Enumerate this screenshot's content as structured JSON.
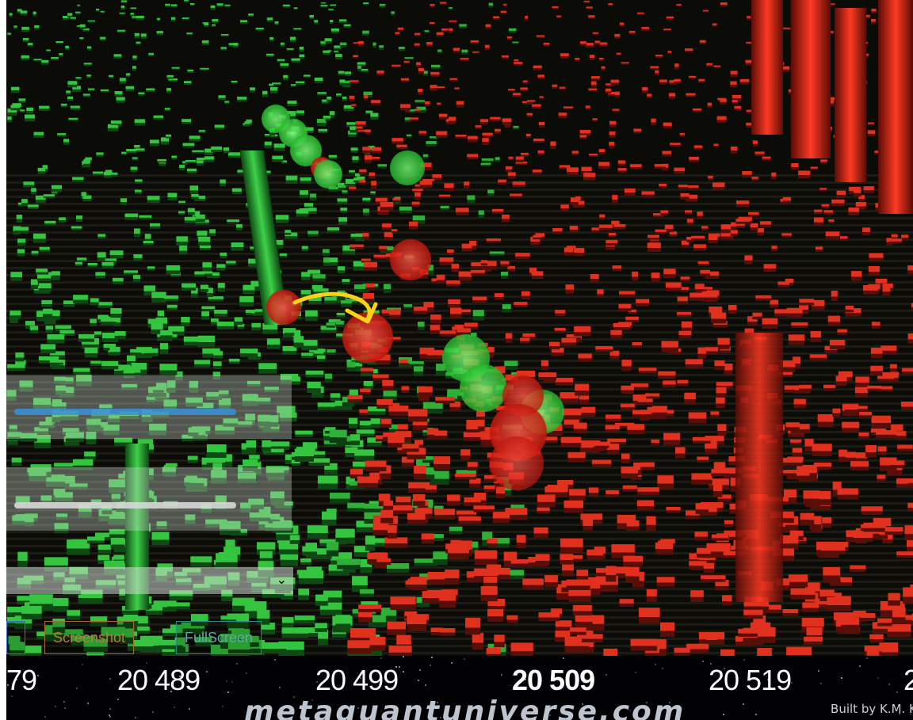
{
  "controls": {
    "screenshot_label": "Screenshot",
    "fullscreen_label": "FullScreen"
  },
  "axis": {
    "ticks": [
      "79",
      "20 489",
      "20 499",
      "20 509",
      "20 519",
      "2"
    ]
  },
  "branding": {
    "site": "metaquantuniverse.com",
    "credit": "Built by K.M. Kar"
  },
  "colors": {
    "bid": "#2fbf3a",
    "ask": "#e0301e",
    "selected_tick": "#ffffff",
    "slider_accent": "#3a8fd8",
    "annotation_arrow": "#ffd21a"
  }
}
